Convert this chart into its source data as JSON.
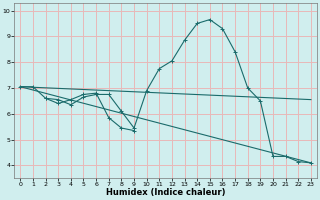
{
  "xlabel": "Humidex (Indice chaleur)",
  "background_color": "#d0eeee",
  "grid_color": "#e8b8b8",
  "line_color": "#1a6b6b",
  "xlim": [
    -0.5,
    23.5
  ],
  "ylim": [
    3.5,
    10.3
  ],
  "yticks": [
    4,
    5,
    6,
    7,
    8,
    9,
    10
  ],
  "xticks": [
    0,
    1,
    2,
    3,
    4,
    5,
    6,
    7,
    8,
    9,
    10,
    11,
    12,
    13,
    14,
    15,
    16,
    17,
    18,
    19,
    20,
    21,
    22,
    23
  ],
  "line1_x": [
    0,
    1,
    2,
    3,
    4,
    5,
    6,
    7,
    8,
    9,
    10,
    11,
    12,
    13,
    14,
    15,
    16,
    17,
    18,
    19,
    20,
    21,
    22,
    23
  ],
  "line1_y": [
    7.05,
    7.05,
    6.6,
    6.55,
    6.35,
    6.65,
    6.75,
    6.75,
    6.1,
    5.45,
    6.9,
    7.75,
    8.05,
    8.85,
    9.5,
    9.65,
    9.3,
    8.4,
    7.0,
    6.5,
    4.35,
    4.35,
    4.15,
    4.1
  ],
  "line2_x": [
    2,
    3,
    4,
    5,
    6,
    7,
    8,
    9
  ],
  "line2_y": [
    6.6,
    6.4,
    6.55,
    6.75,
    6.8,
    5.85,
    5.45,
    5.35
  ],
  "line3_x": [
    0,
    23
  ],
  "line3_y": [
    7.05,
    6.55
  ],
  "line4_x": [
    0,
    23
  ],
  "line4_y": [
    7.05,
    4.1
  ],
  "xlabel_fontsize": 6,
  "tick_fontsize": 4.5
}
